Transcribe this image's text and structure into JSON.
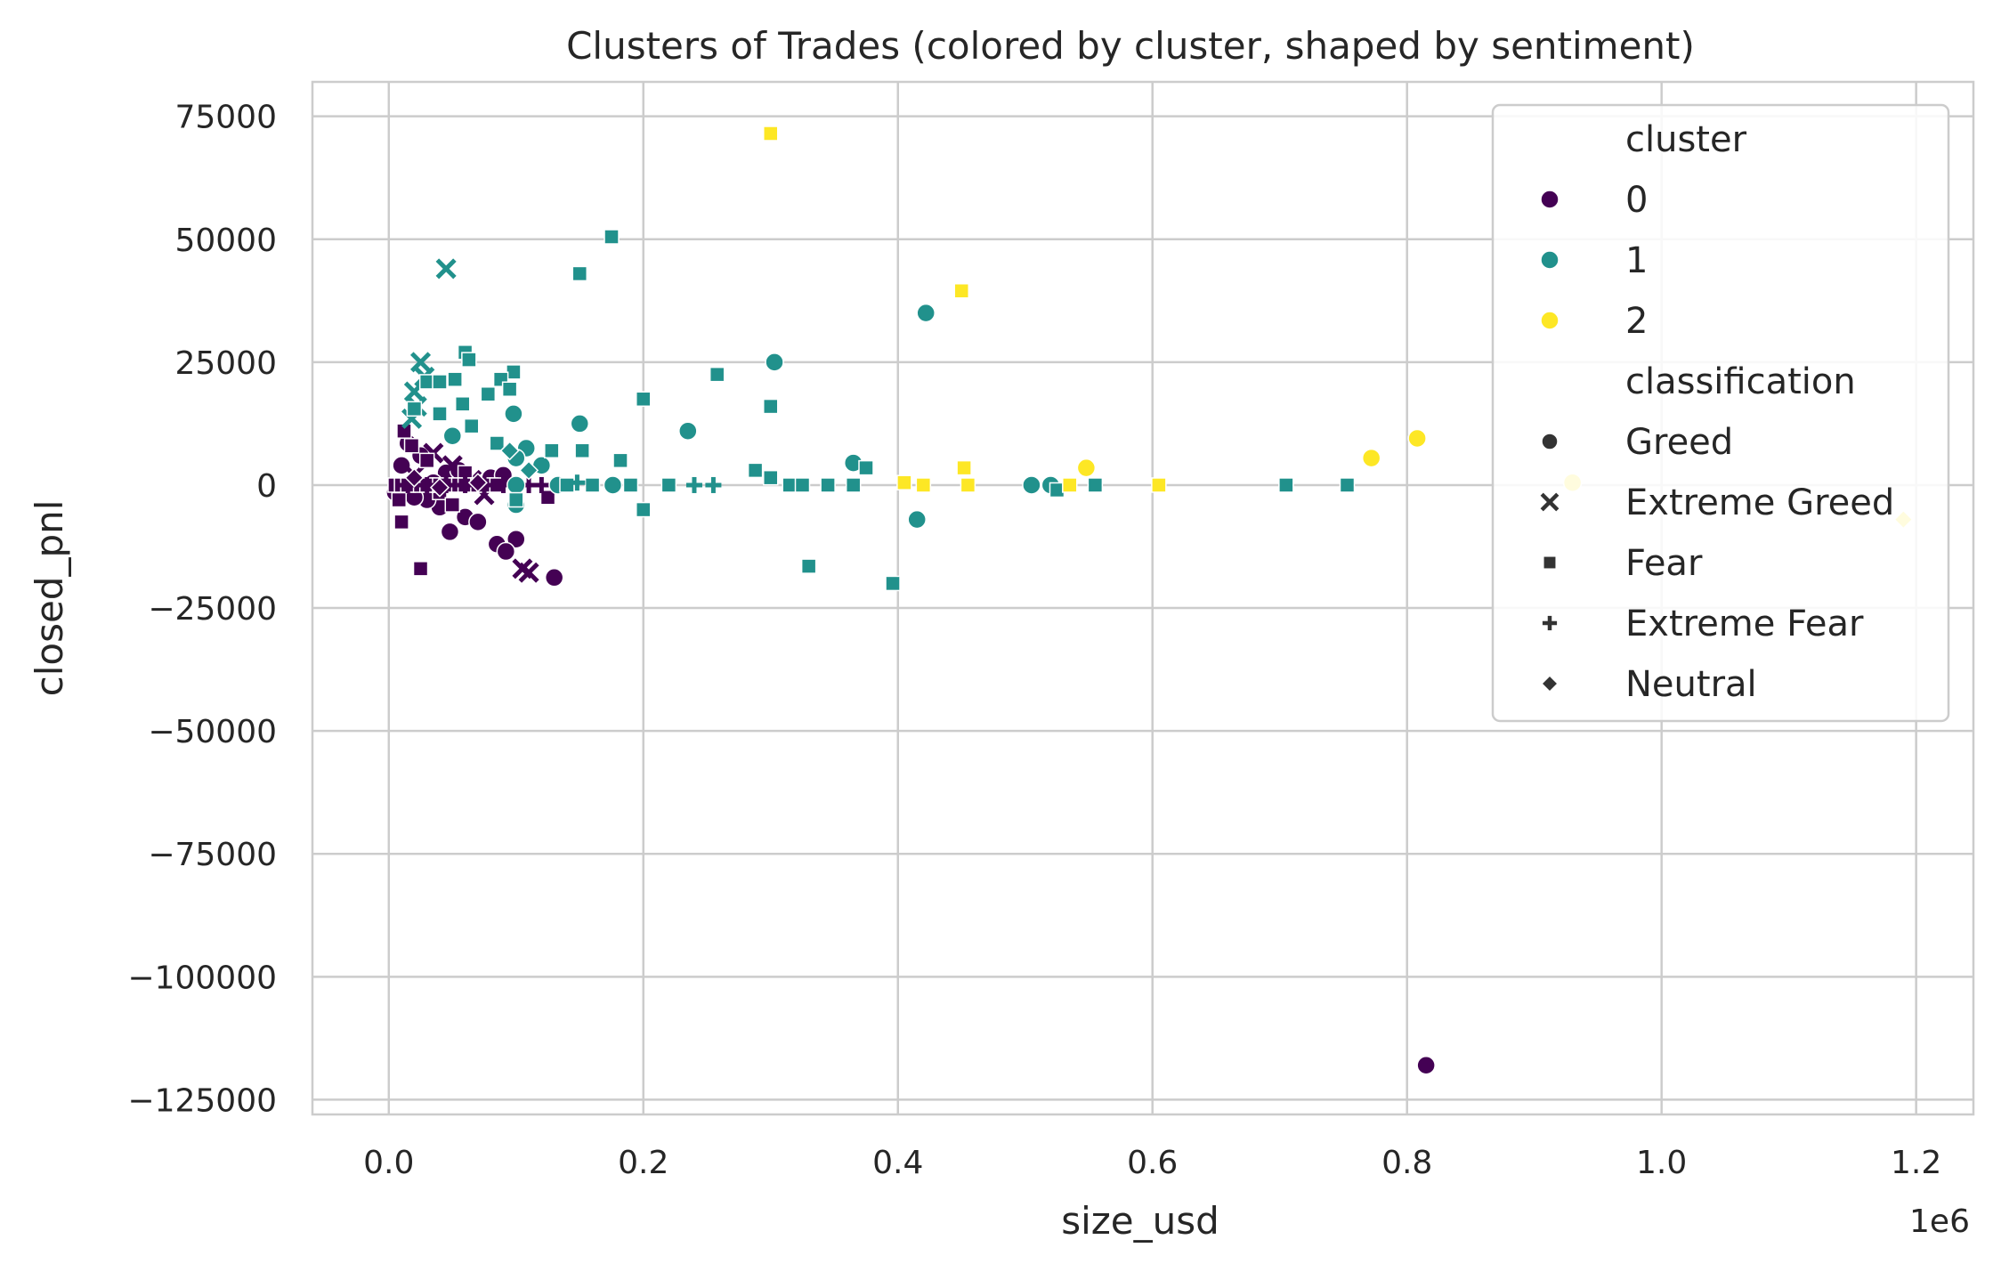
{
  "chart_data": {
    "type": "scatter",
    "title": "Clusters of Trades (colored by cluster, shaped by sentiment)",
    "xlabel": "size_usd",
    "ylabel": "closed_pnl",
    "x_offset_text": "1e6",
    "x_scale_factor": 1000000,
    "xlim": [
      -0.06,
      1.245
    ],
    "ylim": [
      -128000,
      82000
    ],
    "xticks": [
      0.0,
      0.2,
      0.4,
      0.6,
      0.8,
      1.0,
      1.2
    ],
    "xtick_labels": [
      "0.0",
      "0.2",
      "0.4",
      "0.6",
      "0.8",
      "1.0",
      "1.2"
    ],
    "yticks": [
      75000,
      50000,
      25000,
      0,
      -25000,
      -50000,
      -75000,
      -100000,
      -125000
    ],
    "ytick_labels": [
      "75000",
      "50000",
      "25000",
      "0",
      "−25000",
      "−50000",
      "−75000",
      "−100000",
      "−125000"
    ],
    "grid": true,
    "legend_position": "top-right",
    "hue_title": "cluster",
    "style_title": "classification",
    "colors": {
      "0": "#440154",
      "1": "#21918c",
      "2": "#fde725"
    },
    "cluster_labels": [
      "0",
      "1",
      "2"
    ],
    "classification_labels": [
      "Greed",
      "Extreme Greed",
      "Fear",
      "Extreme Fear",
      "Neutral"
    ],
    "marker_names": {
      "Greed": "circle",
      "Extreme Greed": "x",
      "Fear": "square",
      "Extreme Fear": "plus",
      "Neutral": "diamond"
    },
    "points": [
      {
        "x": 0.815,
        "y": -118000,
        "cluster": "0",
        "classification": "Greed"
      },
      {
        "x": 0.13,
        "y": -18800,
        "cluster": "0",
        "classification": "Greed"
      },
      {
        "x": 0.1,
        "y": -11000,
        "cluster": "0",
        "classification": "Greed"
      },
      {
        "x": 0.085,
        "y": -12000,
        "cluster": "0",
        "classification": "Greed"
      },
      {
        "x": 0.092,
        "y": -13500,
        "cluster": "0",
        "classification": "Greed"
      },
      {
        "x": 0.06,
        "y": -6500,
        "cluster": "0",
        "classification": "Greed"
      },
      {
        "x": 0.048,
        "y": -9500,
        "cluster": "0",
        "classification": "Greed"
      },
      {
        "x": 0.07,
        "y": -7500,
        "cluster": "0",
        "classification": "Greed"
      },
      {
        "x": 0.04,
        "y": -4500,
        "cluster": "0",
        "classification": "Greed"
      },
      {
        "x": 0.03,
        "y": -3000,
        "cluster": "0",
        "classification": "Greed"
      },
      {
        "x": 0.02,
        "y": -2500,
        "cluster": "0",
        "classification": "Greed"
      },
      {
        "x": 0.01,
        "y": 4000,
        "cluster": "0",
        "classification": "Greed"
      },
      {
        "x": 0.015,
        "y": 8500,
        "cluster": "0",
        "classification": "Greed"
      },
      {
        "x": 0.025,
        "y": 6000,
        "cluster": "0",
        "classification": "Greed"
      },
      {
        "x": 0.045,
        "y": 2500,
        "cluster": "0",
        "classification": "Greed"
      },
      {
        "x": 0.055,
        "y": 3000,
        "cluster": "0",
        "classification": "Greed"
      },
      {
        "x": 0.08,
        "y": 1500,
        "cluster": "0",
        "classification": "Greed"
      },
      {
        "x": 0.09,
        "y": 2000,
        "cluster": "0",
        "classification": "Greed"
      },
      {
        "x": 0.005,
        "y": -1500,
        "cluster": "0",
        "classification": "Greed"
      },
      {
        "x": 0.035,
        "y": 500,
        "cluster": "0",
        "classification": "Greed"
      },
      {
        "x": 0.11,
        "y": -17800,
        "cluster": "0",
        "classification": "Extreme Greed"
      },
      {
        "x": 0.105,
        "y": -17000,
        "cluster": "0",
        "classification": "Extreme Greed"
      },
      {
        "x": 0.035,
        "y": 6500,
        "cluster": "0",
        "classification": "Extreme Greed"
      },
      {
        "x": 0.05,
        "y": 4000,
        "cluster": "0",
        "classification": "Extreme Greed"
      },
      {
        "x": 0.065,
        "y": 1000,
        "cluster": "0",
        "classification": "Extreme Greed"
      },
      {
        "x": 0.02,
        "y": 2000,
        "cluster": "0",
        "classification": "Extreme Greed"
      },
      {
        "x": 0.075,
        "y": -2000,
        "cluster": "0",
        "classification": "Extreme Greed"
      },
      {
        "x": 0.025,
        "y": -17000,
        "cluster": "0",
        "classification": "Fear"
      },
      {
        "x": 0.01,
        "y": -7500,
        "cluster": "0",
        "classification": "Fear"
      },
      {
        "x": 0.012,
        "y": 11000,
        "cluster": "0",
        "classification": "Fear"
      },
      {
        "x": 0.018,
        "y": 8000,
        "cluster": "0",
        "classification": "Fear"
      },
      {
        "x": 0.03,
        "y": 5000,
        "cluster": "0",
        "classification": "Fear"
      },
      {
        "x": 0.008,
        "y": -3000,
        "cluster": "0",
        "classification": "Fear"
      },
      {
        "x": 0.04,
        "y": -1500,
        "cluster": "0",
        "classification": "Fear"
      },
      {
        "x": 0.06,
        "y": 2500,
        "cluster": "0",
        "classification": "Fear"
      },
      {
        "x": 0.05,
        "y": -4000,
        "cluster": "0",
        "classification": "Fear"
      },
      {
        "x": 0.125,
        "y": -2500,
        "cluster": "0",
        "classification": "Fear"
      },
      {
        "x": 0.005,
        "y": 0,
        "cluster": "0",
        "classification": "Fear"
      },
      {
        "x": 0.01,
        "y": 0,
        "cluster": "0",
        "classification": "Fear"
      },
      {
        "x": 0.015,
        "y": 0,
        "cluster": "0",
        "classification": "Fear"
      },
      {
        "x": 0.02,
        "y": 0,
        "cluster": "0",
        "classification": "Fear"
      },
      {
        "x": 0.025,
        "y": 0,
        "cluster": "0",
        "classification": "Fear"
      },
      {
        "x": 0.03,
        "y": 0,
        "cluster": "0",
        "classification": "Fear"
      },
      {
        "x": 0.035,
        "y": 0,
        "cluster": "0",
        "classification": "Fear"
      },
      {
        "x": 0.04,
        "y": 0,
        "cluster": "0",
        "classification": "Fear"
      },
      {
        "x": 0.045,
        "y": 0,
        "cluster": "0",
        "classification": "Fear"
      },
      {
        "x": 0.05,
        "y": 0,
        "cluster": "0",
        "classification": "Fear"
      },
      {
        "x": 0.055,
        "y": 0,
        "cluster": "0",
        "classification": "Fear"
      },
      {
        "x": 0.06,
        "y": 0,
        "cluster": "0",
        "classification": "Fear"
      },
      {
        "x": 0.065,
        "y": 0,
        "cluster": "0",
        "classification": "Fear"
      },
      {
        "x": 0.07,
        "y": 0,
        "cluster": "0",
        "classification": "Fear"
      },
      {
        "x": 0.075,
        "y": 0,
        "cluster": "0",
        "classification": "Fear"
      },
      {
        "x": 0.08,
        "y": 0,
        "cluster": "0",
        "classification": "Fear"
      },
      {
        "x": 0.085,
        "y": 0,
        "cluster": "0",
        "classification": "Fear"
      },
      {
        "x": 0.015,
        "y": 0,
        "cluster": "0",
        "classification": "Extreme Fear"
      },
      {
        "x": 0.03,
        "y": 0,
        "cluster": "0",
        "classification": "Extreme Fear"
      },
      {
        "x": 0.045,
        "y": 0,
        "cluster": "0",
        "classification": "Extreme Fear"
      },
      {
        "x": 0.06,
        "y": 0,
        "cluster": "0",
        "classification": "Extreme Fear"
      },
      {
        "x": 0.075,
        "y": 0,
        "cluster": "0",
        "classification": "Extreme Fear"
      },
      {
        "x": 0.09,
        "y": 0,
        "cluster": "0",
        "classification": "Extreme Fear"
      },
      {
        "x": 0.11,
        "y": 0,
        "cluster": "0",
        "classification": "Extreme Fear"
      },
      {
        "x": 0.12,
        "y": 0,
        "cluster": "0",
        "classification": "Extreme Fear"
      },
      {
        "x": 0.02,
        "y": 1500,
        "cluster": "0",
        "classification": "Neutral"
      },
      {
        "x": 0.04,
        "y": -500,
        "cluster": "0",
        "classification": "Neutral"
      },
      {
        "x": 0.07,
        "y": 500,
        "cluster": "0",
        "classification": "Neutral"
      },
      {
        "x": 0.422,
        "y": 35000,
        "cluster": "1",
        "classification": "Greed"
      },
      {
        "x": 0.303,
        "y": 25000,
        "cluster": "1",
        "classification": "Greed"
      },
      {
        "x": 0.15,
        "y": 12500,
        "cluster": "1",
        "classification": "Greed"
      },
      {
        "x": 0.235,
        "y": 11000,
        "cluster": "1",
        "classification": "Greed"
      },
      {
        "x": 0.098,
        "y": 14500,
        "cluster": "1",
        "classification": "Greed"
      },
      {
        "x": 0.365,
        "y": 4500,
        "cluster": "1",
        "classification": "Greed"
      },
      {
        "x": 0.415,
        "y": -7000,
        "cluster": "1",
        "classification": "Greed"
      },
      {
        "x": 0.505,
        "y": 0,
        "cluster": "1",
        "classification": "Greed"
      },
      {
        "x": 0.52,
        "y": 0,
        "cluster": "1",
        "classification": "Greed"
      },
      {
        "x": 0.108,
        "y": 7500,
        "cluster": "1",
        "classification": "Greed"
      },
      {
        "x": 0.1,
        "y": 5500,
        "cluster": "1",
        "classification": "Greed"
      },
      {
        "x": 0.12,
        "y": 4000,
        "cluster": "1",
        "classification": "Greed"
      },
      {
        "x": 0.1,
        "y": 0,
        "cluster": "1",
        "classification": "Greed"
      },
      {
        "x": 0.133,
        "y": 0,
        "cluster": "1",
        "classification": "Greed"
      },
      {
        "x": 0.176,
        "y": 0,
        "cluster": "1",
        "classification": "Greed"
      },
      {
        "x": 0.05,
        "y": 10000,
        "cluster": "1",
        "classification": "Greed"
      },
      {
        "x": 0.1,
        "y": -4000,
        "cluster": "1",
        "classification": "Greed"
      },
      {
        "x": 0.045,
        "y": 44000,
        "cluster": "1",
        "classification": "Extreme Greed"
      },
      {
        "x": 0.025,
        "y": 25000,
        "cluster": "1",
        "classification": "Extreme Greed"
      },
      {
        "x": 0.028,
        "y": 22000,
        "cluster": "1",
        "classification": "Extreme Greed"
      },
      {
        "x": 0.02,
        "y": 19000,
        "cluster": "1",
        "classification": "Extreme Greed"
      },
      {
        "x": 0.022,
        "y": 16000,
        "cluster": "1",
        "classification": "Extreme Greed"
      },
      {
        "x": 0.018,
        "y": 13500,
        "cluster": "1",
        "classification": "Extreme Greed"
      },
      {
        "x": 0.175,
        "y": 50500,
        "cluster": "1",
        "classification": "Fear"
      },
      {
        "x": 0.15,
        "y": 43000,
        "cluster": "1",
        "classification": "Fear"
      },
      {
        "x": 0.06,
        "y": 27000,
        "cluster": "1",
        "classification": "Fear"
      },
      {
        "x": 0.063,
        "y": 25500,
        "cluster": "1",
        "classification": "Fear"
      },
      {
        "x": 0.258,
        "y": 22500,
        "cluster": "1",
        "classification": "Fear"
      },
      {
        "x": 0.098,
        "y": 23000,
        "cluster": "1",
        "classification": "Fear"
      },
      {
        "x": 0.088,
        "y": 21500,
        "cluster": "1",
        "classification": "Fear"
      },
      {
        "x": 0.03,
        "y": 21000,
        "cluster": "1",
        "classification": "Fear"
      },
      {
        "x": 0.04,
        "y": 21000,
        "cluster": "1",
        "classification": "Fear"
      },
      {
        "x": 0.052,
        "y": 21500,
        "cluster": "1",
        "classification": "Fear"
      },
      {
        "x": 0.095,
        "y": 19500,
        "cluster": "1",
        "classification": "Fear"
      },
      {
        "x": 0.078,
        "y": 18500,
        "cluster": "1",
        "classification": "Fear"
      },
      {
        "x": 0.2,
        "y": 17500,
        "cluster": "1",
        "classification": "Fear"
      },
      {
        "x": 0.058,
        "y": 16500,
        "cluster": "1",
        "classification": "Fear"
      },
      {
        "x": 0.3,
        "y": 16000,
        "cluster": "1",
        "classification": "Fear"
      },
      {
        "x": 0.02,
        "y": 15500,
        "cluster": "1",
        "classification": "Fear"
      },
      {
        "x": 0.04,
        "y": 14500,
        "cluster": "1",
        "classification": "Fear"
      },
      {
        "x": 0.065,
        "y": 12000,
        "cluster": "1",
        "classification": "Fear"
      },
      {
        "x": 0.085,
        "y": 8500,
        "cluster": "1",
        "classification": "Fear"
      },
      {
        "x": 0.128,
        "y": 7000,
        "cluster": "1",
        "classification": "Fear"
      },
      {
        "x": 0.152,
        "y": 7000,
        "cluster": "1",
        "classification": "Fear"
      },
      {
        "x": 0.182,
        "y": 5000,
        "cluster": "1",
        "classification": "Fear"
      },
      {
        "x": 0.288,
        "y": 3000,
        "cluster": "1",
        "classification": "Fear"
      },
      {
        "x": 0.375,
        "y": 3500,
        "cluster": "1",
        "classification": "Fear"
      },
      {
        "x": 0.3,
        "y": 1500,
        "cluster": "1",
        "classification": "Fear"
      },
      {
        "x": 0.2,
        "y": -5000,
        "cluster": "1",
        "classification": "Fear"
      },
      {
        "x": 0.33,
        "y": -16500,
        "cluster": "1",
        "classification": "Fear"
      },
      {
        "x": 0.396,
        "y": -20000,
        "cluster": "1",
        "classification": "Fear"
      },
      {
        "x": 0.1,
        "y": -3000,
        "cluster": "1",
        "classification": "Fear"
      },
      {
        "x": 0.14,
        "y": 0,
        "cluster": "1",
        "classification": "Fear"
      },
      {
        "x": 0.16,
        "y": 0,
        "cluster": "1",
        "classification": "Fear"
      },
      {
        "x": 0.19,
        "y": 0,
        "cluster": "1",
        "classification": "Fear"
      },
      {
        "x": 0.22,
        "y": 0,
        "cluster": "1",
        "classification": "Fear"
      },
      {
        "x": 0.315,
        "y": 0,
        "cluster": "1",
        "classification": "Fear"
      },
      {
        "x": 0.325,
        "y": 0,
        "cluster": "1",
        "classification": "Fear"
      },
      {
        "x": 0.345,
        "y": 0,
        "cluster": "1",
        "classification": "Fear"
      },
      {
        "x": 0.365,
        "y": 0,
        "cluster": "1",
        "classification": "Fear"
      },
      {
        "x": 0.555,
        "y": 0,
        "cluster": "1",
        "classification": "Fear"
      },
      {
        "x": 0.705,
        "y": 0,
        "cluster": "1",
        "classification": "Fear"
      },
      {
        "x": 0.753,
        "y": 0,
        "cluster": "1",
        "classification": "Fear"
      },
      {
        "x": 0.525,
        "y": -1000,
        "cluster": "1",
        "classification": "Fear"
      },
      {
        "x": 0.24,
        "y": 0,
        "cluster": "1",
        "classification": "Extreme Fear"
      },
      {
        "x": 0.255,
        "y": 0,
        "cluster": "1",
        "classification": "Extreme Fear"
      },
      {
        "x": 0.148,
        "y": 500,
        "cluster": "1",
        "classification": "Extreme Fear"
      },
      {
        "x": 0.095,
        "y": 7000,
        "cluster": "1",
        "classification": "Neutral"
      },
      {
        "x": 0.11,
        "y": 3000,
        "cluster": "1",
        "classification": "Neutral"
      },
      {
        "x": 0.548,
        "y": 3500,
        "cluster": "2",
        "classification": "Greed"
      },
      {
        "x": 0.772,
        "y": 5500,
        "cluster": "2",
        "classification": "Greed"
      },
      {
        "x": 0.808,
        "y": 9500,
        "cluster": "2",
        "classification": "Greed"
      },
      {
        "x": 0.93,
        "y": 500,
        "cluster": "2",
        "classification": "Greed"
      },
      {
        "x": 0.3,
        "y": 71500,
        "cluster": "2",
        "classification": "Fear"
      },
      {
        "x": 0.45,
        "y": 39500,
        "cluster": "2",
        "classification": "Fear"
      },
      {
        "x": 0.405,
        "y": 500,
        "cluster": "2",
        "classification": "Fear"
      },
      {
        "x": 0.42,
        "y": 0,
        "cluster": "2",
        "classification": "Fear"
      },
      {
        "x": 0.452,
        "y": 3500,
        "cluster": "2",
        "classification": "Fear"
      },
      {
        "x": 0.455,
        "y": 0,
        "cluster": "2",
        "classification": "Fear"
      },
      {
        "x": 0.535,
        "y": 0,
        "cluster": "2",
        "classification": "Fear"
      },
      {
        "x": 0.605,
        "y": 0,
        "cluster": "2",
        "classification": "Fear"
      },
      {
        "x": 1.19,
        "y": -7000,
        "cluster": "2",
        "classification": "Neutral"
      }
    ]
  }
}
